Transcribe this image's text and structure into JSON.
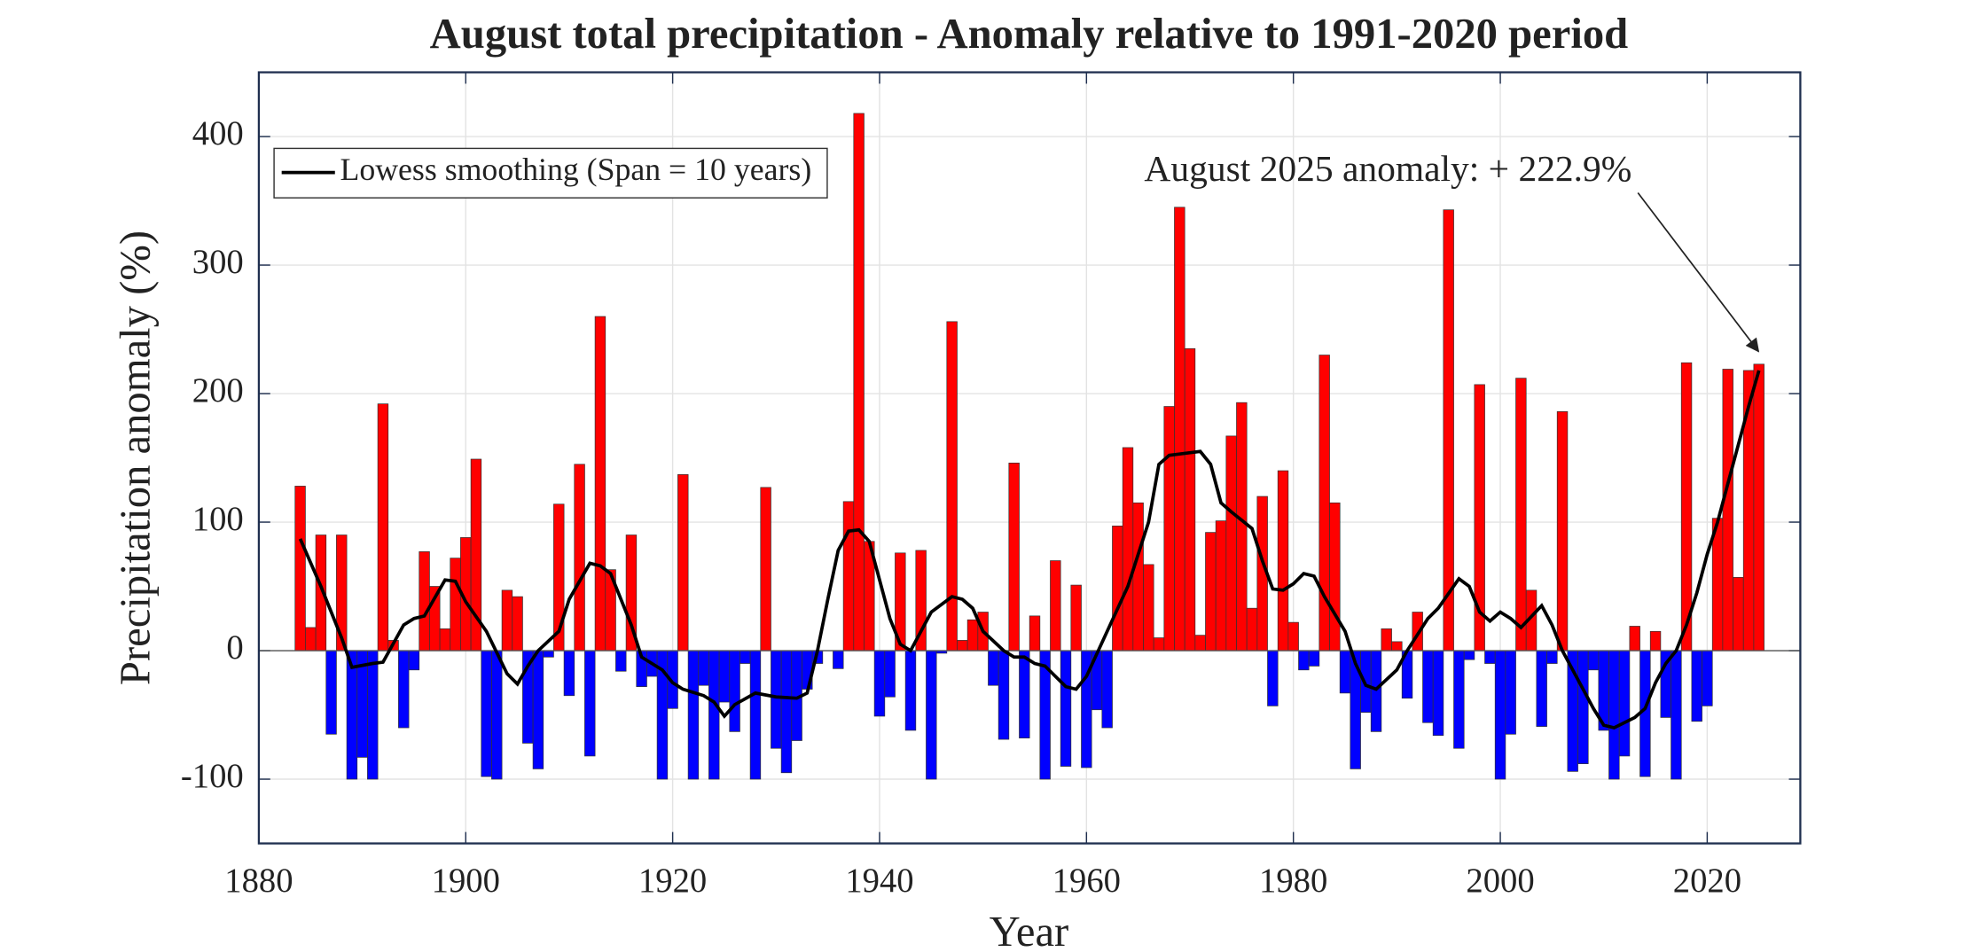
{
  "chart_data": {
    "type": "bar",
    "title": "August total precipitation - Anomaly relative to 1991-2020 period",
    "xlabel": "Year",
    "ylabel": "Precipitation anomaly (%)",
    "annotation": "August 2025 anomaly: + 222.9%",
    "xlim": [
      1880,
      2029
    ],
    "ylim": [
      -150,
      450
    ],
    "xticks": [
      1880,
      1900,
      1920,
      1940,
      1960,
      1980,
      2000,
      2020
    ],
    "yticks": [
      -100,
      0,
      100,
      200,
      300,
      400
    ],
    "grid": true,
    "legend": "upper left",
    "bars": {
      "positive_color": "#ff0000",
      "negative_color": "#0000ff",
      "x": [
        1884,
        1885,
        1886,
        1887,
        1888,
        1889,
        1890,
        1891,
        1892,
        1893,
        1894,
        1895,
        1896,
        1897,
        1898,
        1899,
        1900,
        1901,
        1902,
        1903,
        1904,
        1905,
        1906,
        1907,
        1908,
        1909,
        1910,
        1911,
        1912,
        1913,
        1914,
        1915,
        1916,
        1917,
        1918,
        1919,
        1920,
        1921,
        1922,
        1923,
        1924,
        1925,
        1926,
        1927,
        1928,
        1929,
        1930,
        1931,
        1932,
        1933,
        1934,
        1935,
        1936,
        1937,
        1938,
        1939,
        1940,
        1941,
        1942,
        1943,
        1944,
        1945,
        1946,
        1947,
        1948,
        1949,
        1950,
        1951,
        1952,
        1953,
        1954,
        1955,
        1956,
        1957,
        1958,
        1959,
        1960,
        1961,
        1962,
        1963,
        1964,
        1965,
        1966,
        1967,
        1968,
        1969,
        1970,
        1971,
        1972,
        1973,
        1974,
        1975,
        1976,
        1977,
        1978,
        1979,
        1980,
        1981,
        1982,
        1983,
        1984,
        1985,
        1986,
        1987,
        1988,
        1989,
        1990,
        1991,
        1992,
        1993,
        1994,
        1995,
        1996,
        1997,
        1998,
        1999,
        2000,
        2001,
        2002,
        2003,
        2004,
        2005,
        2006,
        2007,
        2008,
        2009,
        2010,
        2011,
        2012,
        2013,
        2014,
        2015,
        2016,
        2017,
        2018,
        2019,
        2020,
        2021,
        2022,
        2023,
        2024,
        2025
      ],
      "values": [
        128,
        18,
        90,
        -65,
        90,
        -100,
        -83,
        -100,
        192,
        8,
        -60,
        -15,
        77,
        50,
        17,
        72,
        88,
        149,
        -98,
        -100,
        47,
        42,
        -72,
        -92,
        -5,
        114,
        -35,
        145,
        -82,
        260,
        63,
        -16,
        90,
        -28,
        -20,
        -100,
        -45,
        137,
        -100,
        -27,
        -100,
        -40,
        -63,
        -10,
        -100,
        127,
        -76,
        -95,
        -70,
        -30,
        -10,
        0,
        -14,
        116,
        418,
        85,
        -51,
        -36,
        76,
        -62,
        78,
        -100,
        -2,
        256,
        8,
        24,
        30,
        -27,
        -69,
        146,
        -68,
        27,
        -100,
        70,
        -90,
        51,
        -91,
        -46,
        -60,
        97,
        158,
        115,
        67,
        10,
        190,
        345,
        235,
        12,
        92,
        101,
        167,
        193,
        33,
        120,
        -43,
        140,
        22,
        -15,
        -12,
        230,
        115,
        -33,
        -92,
        -48,
        -63,
        17,
        7,
        -37,
        30,
        -56,
        -66,
        343,
        -76,
        -7,
        207,
        -10,
        -100,
        -65,
        212,
        47,
        -59,
        -10,
        186,
        -94,
        -88,
        -15,
        -62,
        -100,
        -82,
        19,
        -98,
        15,
        -52,
        -100,
        224,
        -55,
        -43,
        103,
        219,
        57,
        218,
        222.9
      ]
    },
    "line": {
      "name": "Lowess smoothing (Span = 10 years)",
      "color": "#000000",
      "x": [
        1884,
        1886,
        1888,
        1889,
        1891,
        1892,
        1894,
        1895,
        1896,
        1898,
        1899,
        1900,
        1902,
        1904,
        1905,
        1906,
        1907,
        1909,
        1910,
        1912,
        1913,
        1914,
        1916,
        1917,
        1919,
        1920,
        1921,
        1923,
        1924,
        1925,
        1926,
        1928,
        1930,
        1932,
        1933,
        1934,
        1935,
        1936,
        1937,
        1938,
        1939,
        1940,
        1941,
        1942,
        1943,
        1944,
        1945,
        1947,
        1948,
        1949,
        1950,
        1952,
        1953,
        1954,
        1955,
        1956,
        1957,
        1958,
        1959,
        1960,
        1962,
        1964,
        1966,
        1967,
        1968,
        1969,
        1971,
        1972,
        1973,
        1974,
        1976,
        1977,
        1978,
        1979,
        1980,
        1981,
        1982,
        1983,
        1985,
        1986,
        1987,
        1988,
        1990,
        1991,
        1993,
        1994,
        1996,
        1997,
        1998,
        1999,
        2000,
        2001,
        2002,
        2004,
        2005,
        2006,
        2008,
        2009,
        2010,
        2011,
        2013,
        2014,
        2015,
        2016,
        2017,
        2018,
        2019,
        2020,
        2021,
        2022,
        2023,
        2024,
        2025
      ],
      "values": [
        87,
        50,
        10,
        -13,
        -10,
        -9,
        20,
        25,
        27,
        55,
        54,
        38,
        15,
        -18,
        -26,
        -12,
        0,
        15,
        40,
        68,
        66,
        60,
        20,
        -5,
        -15,
        -25,
        -30,
        -35,
        -40,
        -51,
        -42,
        -33,
        -36,
        -37,
        -33,
        0,
        40,
        78,
        93,
        94,
        85,
        55,
        25,
        5,
        0,
        15,
        30,
        42,
        40,
        33,
        15,
        0,
        -5,
        -5,
        -10,
        -12,
        -20,
        -28,
        -30,
        -20,
        15,
        50,
        100,
        145,
        152,
        153,
        155,
        145,
        115,
        108,
        95,
        70,
        48,
        47,
        52,
        60,
        58,
        42,
        15,
        -10,
        -27,
        -30,
        -15,
        0,
        25,
        33,
        56,
        50,
        30,
        23,
        30,
        25,
        18,
        35,
        20,
        0,
        -30,
        -45,
        -58,
        -60,
        -52,
        -45,
        -25,
        -10,
        0,
        20,
        45,
        75,
        100,
        130,
        160,
        190,
        218
      ]
    }
  }
}
